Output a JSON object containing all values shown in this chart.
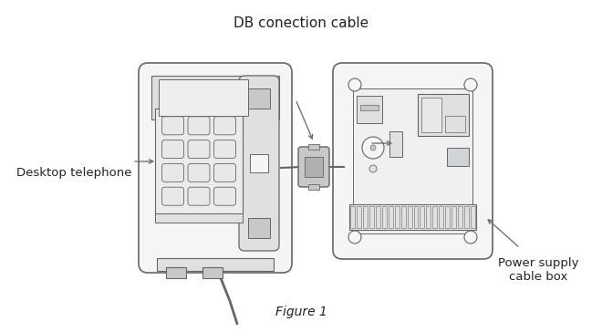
{
  "title": "DB conection cable",
  "figure_label": "Figure 1",
  "label_desktop": "Desktop telephone",
  "label_power": "Power supply\ncable box",
  "bg_color": "#ffffff",
  "line_color": "#666666",
  "fill_light": "#f5f5f5",
  "fill_mid": "#e0e0e0",
  "fill_dark": "#c8c8c8",
  "title_fontsize": 11,
  "label_fontsize": 9.5,
  "figure_label_fontsize": 10
}
